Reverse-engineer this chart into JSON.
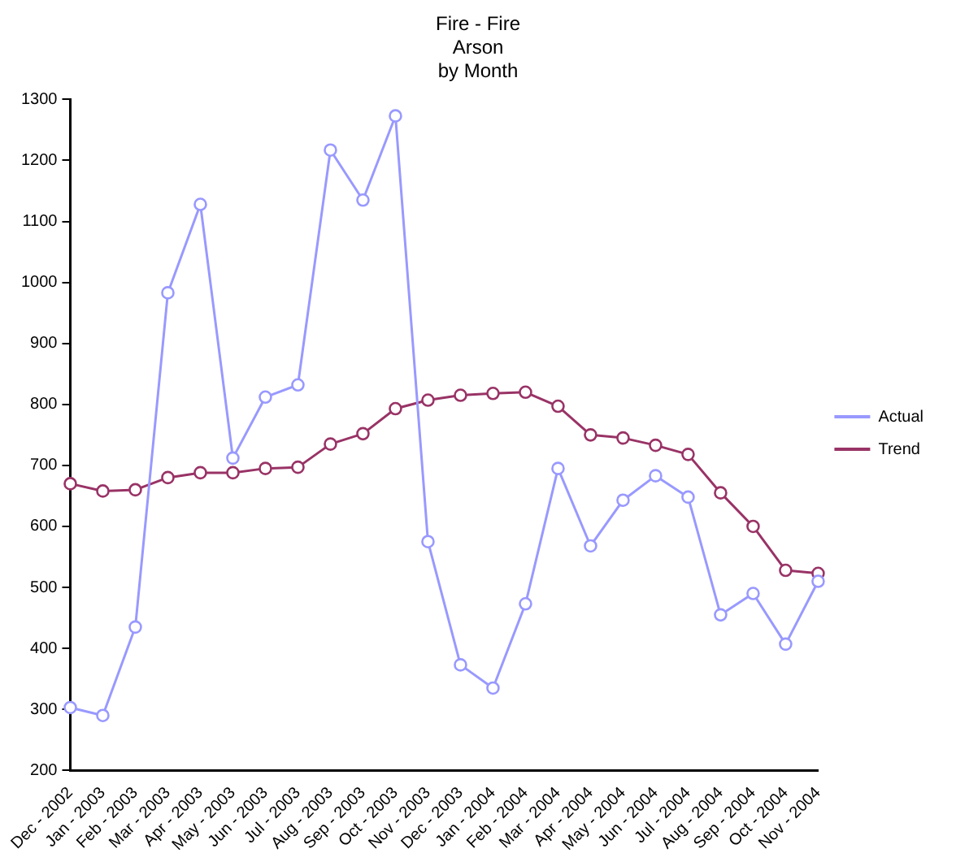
{
  "chart_data": {
    "type": "line",
    "title": "Fire - Fire\nArson\nby Month",
    "categories": [
      "Dec - 2002",
      "Jan - 2003",
      "Feb - 2003",
      "Mar - 2003",
      "Apr - 2003",
      "May - 2003",
      "Jun - 2003",
      "Jul - 2003",
      "Aug - 2003",
      "Sep - 2003",
      "Oct - 2003",
      "Nov - 2003",
      "Dec - 2003",
      "Jan - 2004",
      "Feb - 2004",
      "Mar - 2004",
      "Apr - 2004",
      "May - 2004",
      "Jun - 2004",
      "Jul - 2004",
      "Aug - 2004",
      "Sep - 2004",
      "Oct - 2004",
      "Nov - 2004"
    ],
    "series": [
      {
        "name": "Actual",
        "color": "#9999ff",
        "values": [
          303,
          290,
          435,
          983,
          1128,
          712,
          812,
          832,
          1217,
          1135,
          1273,
          575,
          373,
          335,
          473,
          695,
          568,
          643,
          683,
          648,
          455,
          490,
          407,
          510
        ]
      },
      {
        "name": "Trend",
        "color": "#993366",
        "values": [
          670,
          658,
          660,
          680,
          688,
          688,
          695,
          697,
          735,
          752,
          793,
          807,
          815,
          818,
          820,
          797,
          750,
          745,
          733,
          718,
          655,
          600,
          528,
          523
        ]
      }
    ],
    "ylim": [
      200,
      1300
    ],
    "yticks": [
      200,
      300,
      400,
      500,
      600,
      700,
      800,
      900,
      1000,
      1100,
      1200,
      1300
    ],
    "grid": false,
    "legend": "right",
    "marker": "circle",
    "line_style": "solid"
  }
}
